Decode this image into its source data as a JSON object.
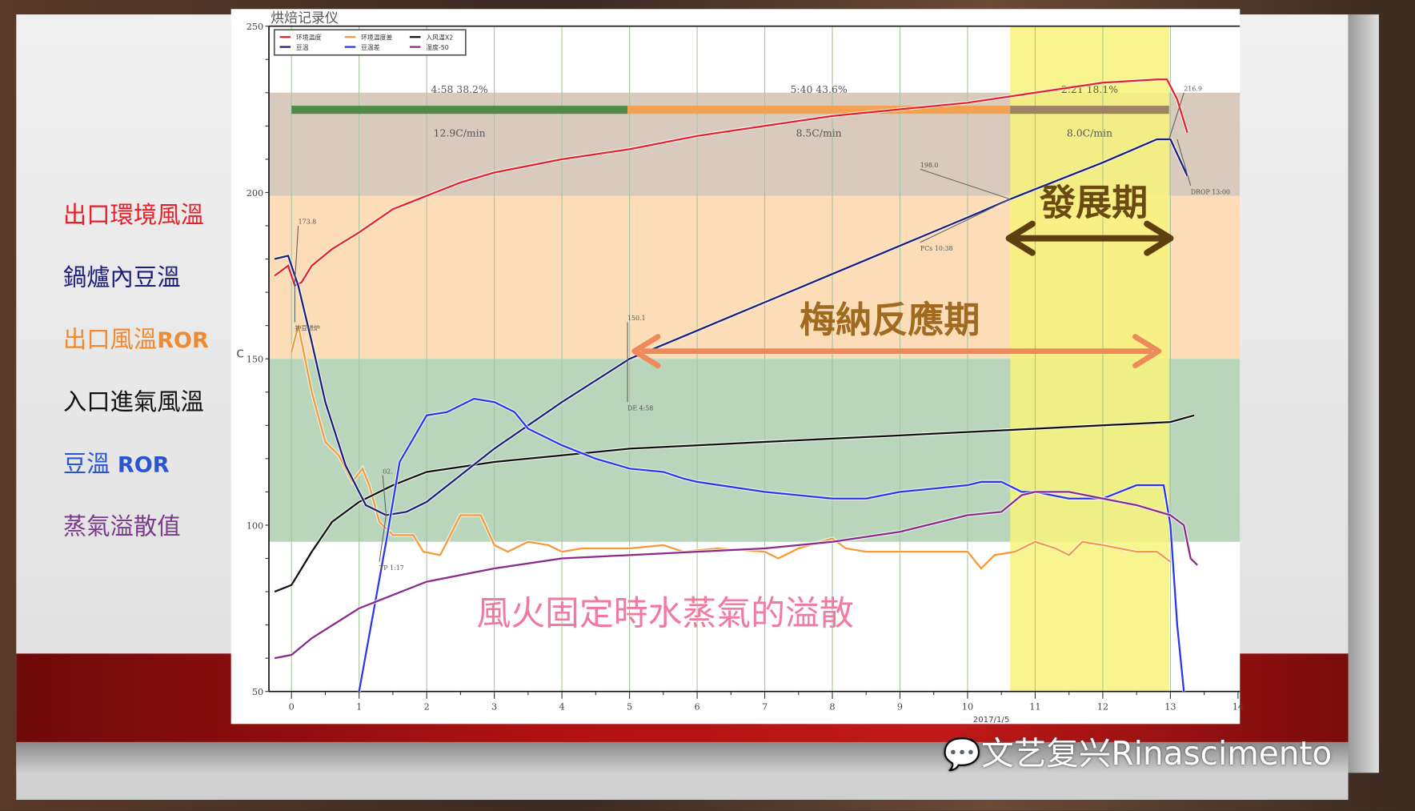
{
  "chart_data": {
    "type": "line",
    "title": "烘焙记录仪",
    "xlabel": "2017/1/5",
    "ylabel": "C",
    "xlim": [
      -0.35,
      14
    ],
    "ylim": [
      50,
      250
    ],
    "xticks": [
      "0",
      "1",
      "2",
      "3",
      "4",
      "5",
      "6",
      "7",
      "8",
      "9",
      "10",
      "11",
      "12",
      "13",
      "14"
    ],
    "yticks": [
      "50",
      "100",
      "150",
      "200",
      "250"
    ],
    "grid": "vertical",
    "legend_placement": "top-left",
    "bands": [
      {
        "from": 199,
        "to": 230,
        "color": "#d8cbbd"
      },
      {
        "from": 150,
        "to": 199,
        "color": "#fddcb8"
      },
      {
        "from": 95,
        "to": 150,
        "color": "#b9d5bc"
      }
    ],
    "highlight": {
      "from": 10.63,
      "to": 12.98,
      "color": "#f7f37a"
    },
    "phase_bar": {
      "level": 225,
      "segments": [
        {
          "from": 0,
          "to": 4.97,
          "color": "#4f8a4a",
          "label": "4:58   38.2%",
          "rate": "12.9C/min"
        },
        {
          "from": 4.97,
          "to": 10.63,
          "color": "#f3a050",
          "label": "5:40   43.6%",
          "rate": "8.5C/min"
        },
        {
          "from": 10.63,
          "to": 12.98,
          "color": "#9c8462",
          "label": "2:21   18.1%",
          "rate": "8.0C/min"
        }
      ]
    },
    "series": [
      {
        "name": "环境温度",
        "color": "#e8202a",
        "points": [
          [
            -0.25,
            175
          ],
          [
            -0.05,
            178
          ],
          [
            0.05,
            172
          ],
          [
            0.15,
            173
          ],
          [
            0.3,
            178
          ],
          [
            0.6,
            183
          ],
          [
            1,
            188
          ],
          [
            1.5,
            195
          ],
          [
            2,
            199
          ],
          [
            2.5,
            203
          ],
          [
            3,
            206
          ],
          [
            4,
            210
          ],
          [
            5,
            213
          ],
          [
            6,
            217
          ],
          [
            7,
            220
          ],
          [
            8,
            223
          ],
          [
            9,
            225
          ],
          [
            10,
            227
          ],
          [
            11,
            230
          ],
          [
            12,
            233
          ],
          [
            12.8,
            234
          ],
          [
            12.95,
            234
          ],
          [
            13.1,
            228
          ],
          [
            13.25,
            218
          ]
        ]
      },
      {
        "name": "环境温度差",
        "color": "#f59a3a",
        "points": [
          [
            0,
            152
          ],
          [
            0.1,
            160
          ],
          [
            0.3,
            140
          ],
          [
            0.5,
            125
          ],
          [
            0.7,
            121
          ],
          [
            0.9,
            113
          ],
          [
            1.05,
            117
          ],
          [
            1.15,
            112
          ],
          [
            1.3,
            101
          ],
          [
            1.5,
            97
          ],
          [
            1.8,
            97
          ],
          [
            1.95,
            92
          ],
          [
            2.2,
            91
          ],
          [
            2.5,
            103
          ],
          [
            2.8,
            103
          ],
          [
            3,
            94
          ],
          [
            3.2,
            92
          ],
          [
            3.5,
            95
          ],
          [
            3.8,
            94
          ],
          [
            4,
            92
          ],
          [
            4.3,
            93
          ],
          [
            5,
            93
          ],
          [
            5.5,
            94
          ],
          [
            5.8,
            92
          ],
          [
            6.3,
            93
          ],
          [
            7,
            92
          ],
          [
            7.2,
            90
          ],
          [
            7.5,
            93
          ],
          [
            8,
            96
          ],
          [
            8.2,
            93
          ],
          [
            8.5,
            92
          ],
          [
            9,
            92
          ],
          [
            10,
            92
          ],
          [
            10.2,
            87
          ],
          [
            10.4,
            91
          ],
          [
            10.7,
            92
          ],
          [
            11,
            95
          ],
          [
            11.3,
            93
          ],
          [
            11.5,
            91
          ],
          [
            11.7,
            95
          ],
          [
            12,
            94
          ],
          [
            12.5,
            92
          ],
          [
            12.8,
            92
          ],
          [
            13,
            89
          ]
        ]
      },
      {
        "name": "入风温X2",
        "color": "#111111",
        "points": [
          [
            -0.25,
            80
          ],
          [
            0,
            82
          ],
          [
            0.3,
            92
          ],
          [
            0.6,
            101
          ],
          [
            1,
            107
          ],
          [
            1.5,
            112
          ],
          [
            2,
            116
          ],
          [
            3,
            119
          ],
          [
            4,
            121
          ],
          [
            5,
            123
          ],
          [
            6,
            124
          ],
          [
            7,
            125
          ],
          [
            8,
            126
          ],
          [
            9,
            127
          ],
          [
            10,
            128
          ],
          [
            11,
            129
          ],
          [
            12,
            130
          ],
          [
            13,
            131
          ],
          [
            13.35,
            133
          ]
        ]
      },
      {
        "name": "豆温",
        "color": "#1c1f7a",
        "points": [
          [
            -0.25,
            180
          ],
          [
            -0.05,
            181
          ],
          [
            0.1,
            172
          ],
          [
            0.3,
            155
          ],
          [
            0.5,
            137
          ],
          [
            0.8,
            118
          ],
          [
            1.1,
            106
          ],
          [
            1.4,
            103
          ],
          [
            1.7,
            104
          ],
          [
            2,
            107
          ],
          [
            3,
            123
          ],
          [
            4,
            137
          ],
          [
            5,
            150
          ],
          [
            6,
            158.5
          ],
          [
            7,
            167
          ],
          [
            8,
            175.5
          ],
          [
            9,
            184
          ],
          [
            10,
            192.5
          ],
          [
            10.63,
            198
          ],
          [
            11,
            201
          ],
          [
            12,
            209
          ],
          [
            12.8,
            216
          ],
          [
            13,
            216
          ],
          [
            13.25,
            205
          ]
        ]
      },
      {
        "name": "豆温差",
        "color": "#2a35f0",
        "points": [
          [
            1,
            50
          ],
          [
            1.4,
            95
          ],
          [
            1.6,
            119
          ],
          [
            2,
            133
          ],
          [
            2.3,
            134
          ],
          [
            2.7,
            138
          ],
          [
            3,
            137
          ],
          [
            3.3,
            134
          ],
          [
            3.5,
            129
          ],
          [
            4,
            124
          ],
          [
            4.5,
            120
          ],
          [
            5,
            117
          ],
          [
            5.5,
            116
          ],
          [
            5.8,
            114
          ],
          [
            6,
            113
          ],
          [
            7,
            110
          ],
          [
            8,
            108
          ],
          [
            8.5,
            108
          ],
          [
            9,
            110
          ],
          [
            9.5,
            111
          ],
          [
            10,
            112
          ],
          [
            10.2,
            113
          ],
          [
            10.5,
            113
          ],
          [
            10.8,
            110
          ],
          [
            11,
            110
          ],
          [
            11.5,
            108
          ],
          [
            12,
            108
          ],
          [
            12.5,
            112
          ],
          [
            12.9,
            112
          ],
          [
            13,
            100
          ],
          [
            13.1,
            70
          ],
          [
            13.2,
            50
          ]
        ]
      },
      {
        "name": "湿度-50",
        "color": "#8a2a8a",
        "points": [
          [
            -0.25,
            60
          ],
          [
            0,
            61
          ],
          [
            0.3,
            66
          ],
          [
            1,
            75
          ],
          [
            1.5,
            79
          ],
          [
            2,
            83
          ],
          [
            3,
            87
          ],
          [
            4,
            90
          ],
          [
            5,
            91
          ],
          [
            6,
            92
          ],
          [
            7,
            93
          ],
          [
            8,
            95
          ],
          [
            9,
            98
          ],
          [
            10,
            103
          ],
          [
            10.5,
            104
          ],
          [
            10.8,
            109
          ],
          [
            11,
            110
          ],
          [
            11.5,
            110
          ],
          [
            12,
            108
          ],
          [
            12.5,
            106
          ],
          [
            13,
            103
          ],
          [
            13.2,
            100
          ],
          [
            13.3,
            90
          ],
          [
            13.4,
            88
          ]
        ]
      }
    ],
    "annotations": [
      {
        "text": "173.8",
        "x": 0.05,
        "y": 173,
        "tx": 0.1,
        "ty": 190
      },
      {
        "text": "护豆进炉",
        "x": 0.05,
        "y": 173,
        "tx": 0.05,
        "ty": 161
      },
      {
        "text": "02.",
        "x": 1.4,
        "y": 103,
        "tx": 1.35,
        "ty": 115
      },
      {
        "text": "TP 1:17",
        "x": 1.4,
        "y": 103,
        "tx": 1.3,
        "ty": 89
      },
      {
        "text": "150.1",
        "x": 4.97,
        "y": 150,
        "tx": 4.97,
        "ty": 161
      },
      {
        "text": "DE 4:58",
        "x": 4.97,
        "y": 150,
        "tx": 4.97,
        "ty": 137
      },
      {
        "text": "198.0",
        "x": 10.63,
        "y": 198,
        "tx": 9.3,
        "ty": 207
      },
      {
        "text": "FCs 10:38",
        "x": 10.63,
        "y": 198,
        "tx": 9.3,
        "ty": 185
      },
      {
        "text": "216.9",
        "x": 12.98,
        "y": 216,
        "tx": 13.2,
        "ty": 230
      },
      {
        "text": "DROP 13:00",
        "x": 13.1,
        "y": 216,
        "tx": 13.3,
        "ty": 202
      }
    ]
  },
  "side_labels": [
    {
      "text": "出口環境風溫",
      "suffix": "",
      "color": "#e8202a"
    },
    {
      "text": "鍋爐內豆溫",
      "suffix": "",
      "color": "#1c1f7a"
    },
    {
      "text": "出口風溫",
      "suffix": "ROR",
      "color": "#f08a30"
    },
    {
      "text": "入口進氣風溫",
      "suffix": "",
      "color": "#111111"
    },
    {
      "text": "豆溫 ",
      "suffix": "ROR",
      "color": "#2a55d0"
    },
    {
      "text": "蒸氣溢散值",
      "suffix": "",
      "color": "#7a3a8a"
    }
  ],
  "overlays": {
    "development": "發展期",
    "maillard": "梅納反應期",
    "steam": "風火固定時水蒸氣的溢散"
  },
  "watermark": "文艺复兴Rinascimento",
  "colors": {
    "development": "#6b4a12",
    "maillard": "#a06a20",
    "maillard_arrow": "#ee8a5a",
    "steam": "#f07aa0",
    "slide_red": "#b01212"
  }
}
